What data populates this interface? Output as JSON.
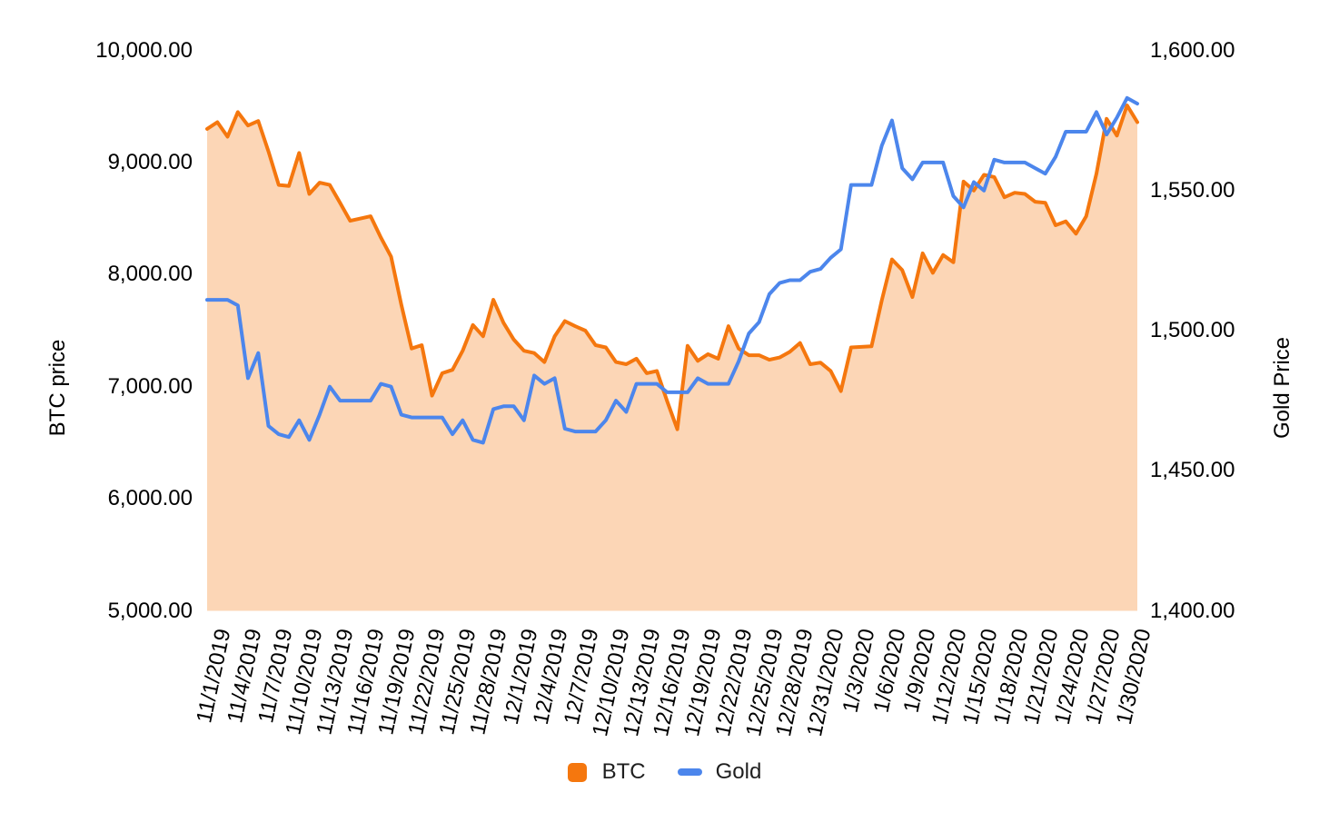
{
  "chart_data": {
    "type": "area",
    "title": "",
    "x": [
      "11/1/2019",
      "11/2/2019",
      "11/3/2019",
      "11/4/2019",
      "11/5/2019",
      "11/6/2019",
      "11/7/2019",
      "11/8/2019",
      "11/9/2019",
      "11/10/2019",
      "11/11/2019",
      "11/12/2019",
      "11/13/2019",
      "11/14/2019",
      "11/15/2019",
      "11/16/2019",
      "11/17/2019",
      "11/18/2019",
      "11/19/2019",
      "11/20/2019",
      "11/21/2019",
      "11/22/2019",
      "11/23/2019",
      "11/24/2019",
      "11/25/2019",
      "11/26/2019",
      "11/27/2019",
      "11/28/2019",
      "11/29/2019",
      "11/30/2019",
      "12/1/2019",
      "12/2/2019",
      "12/3/2019",
      "12/4/2019",
      "12/5/2019",
      "12/6/2019",
      "12/7/2019",
      "12/8/2019",
      "12/9/2019",
      "12/10/2019",
      "12/11/2019",
      "12/12/2019",
      "12/13/2019",
      "12/14/2019",
      "12/15/2019",
      "12/16/2019",
      "12/17/2019",
      "12/18/2019",
      "12/19/2019",
      "12/20/2019",
      "12/21/2019",
      "12/22/2019",
      "12/23/2019",
      "12/24/2019",
      "12/25/2019",
      "12/26/2019",
      "12/27/2019",
      "12/28/2019",
      "12/29/2019",
      "12/30/2019",
      "12/31/2020",
      "1/1/2020",
      "1/2/2020",
      "1/3/2020",
      "1/4/2020",
      "1/5/2020",
      "1/6/2020",
      "1/7/2020",
      "1/8/2020",
      "1/9/2020",
      "1/10/2020",
      "1/11/2020",
      "1/12/2020",
      "1/13/2020",
      "1/14/2020",
      "1/15/2020",
      "1/16/2020",
      "1/17/2020",
      "1/18/2020",
      "1/19/2020",
      "1/20/2020",
      "1/21/2020",
      "1/22/2020",
      "1/23/2020",
      "1/24/2020",
      "1/25/2020",
      "1/26/2020",
      "1/27/2020",
      "1/28/2020",
      "1/29/2020",
      "1/30/2020",
      "1/31/2020"
    ],
    "x_tick_every": 3,
    "series": [
      {
        "name": "BTC",
        "type": "area",
        "axis": "left",
        "color": "#F5770E",
        "fill_opacity": 0.3,
        "values": [
          9300,
          9360,
          9230,
          9450,
          9330,
          9370,
          9100,
          8800,
          8790,
          9085,
          8720,
          8820,
          8800,
          8640,
          8480,
          8500,
          8520,
          8330,
          8160,
          7730,
          7340,
          7370,
          6920,
          7120,
          7150,
          7320,
          7550,
          7450,
          7775,
          7570,
          7420,
          7320,
          7300,
          7220,
          7450,
          7585,
          7540,
          7500,
          7370,
          7350,
          7220,
          7200,
          7250,
          7120,
          7140,
          6870,
          6620,
          7365,
          7230,
          7290,
          7250,
          7540,
          7340,
          7280,
          7280,
          7240,
          7260,
          7310,
          7390,
          7200,
          7215,
          7140,
          6960,
          7350,
          7355,
          7360,
          7770,
          8135,
          8040,
          7800,
          8190,
          8015,
          8175,
          8110,
          8830,
          8750,
          8890,
          8870,
          8690,
          8730,
          8720,
          8650,
          8640,
          8440,
          8475,
          8365,
          8520,
          8900,
          9390,
          9240,
          9510,
          9360
        ]
      },
      {
        "name": "Gold",
        "type": "line",
        "axis": "right",
        "color": "#4C86EC",
        "values": [
          1511,
          1511,
          1511,
          1509,
          1483,
          1492,
          1466,
          1463,
          1462,
          1468,
          1461,
          1470,
          1480,
          1475,
          1475,
          1475,
          1475,
          1481,
          1480,
          1470,
          1469,
          1469,
          1469,
          1469,
          1463,
          1468,
          1461,
          1460,
          1472,
          1473,
          1473,
          1468,
          1484,
          1481,
          1483,
          1465,
          1464,
          1464,
          1464,
          1468,
          1475,
          1471,
          1481,
          1481,
          1481,
          1478,
          1478,
          1478,
          1483,
          1481,
          1481,
          1481,
          1489,
          1499,
          1503,
          1513,
          1517,
          1518,
          1518,
          1521,
          1522,
          1526,
          1529,
          1552,
          1552,
          1552,
          1566,
          1575,
          1558,
          1554,
          1560,
          1560,
          1560,
          1548,
          1544,
          1553,
          1550,
          1561,
          1560,
          1560,
          1560,
          1558,
          1556,
          1562,
          1571,
          1571,
          1571,
          1578,
          1570,
          1576,
          1583,
          1581
        ]
      }
    ],
    "left_axis": {
      "title": "BTC price",
      "min": 5000,
      "max": 10000,
      "tick_step": 1000,
      "tick_labels": [
        "10,000.00",
        "9,000.00",
        "8,000.00",
        "7,000.00",
        "6,000.00",
        "5,000.00"
      ]
    },
    "right_axis": {
      "title": "Gold Price",
      "min": 1400,
      "max": 1600,
      "tick_step": 50,
      "tick_labels": [
        "1,600.00",
        "1,550.00",
        "1,500.00",
        "1,450.00",
        "1,400.00"
      ]
    },
    "legend": {
      "position": "bottom",
      "entries": [
        "BTC",
        "Gold"
      ]
    },
    "grid": "off",
    "background": "#FFFFFF"
  }
}
